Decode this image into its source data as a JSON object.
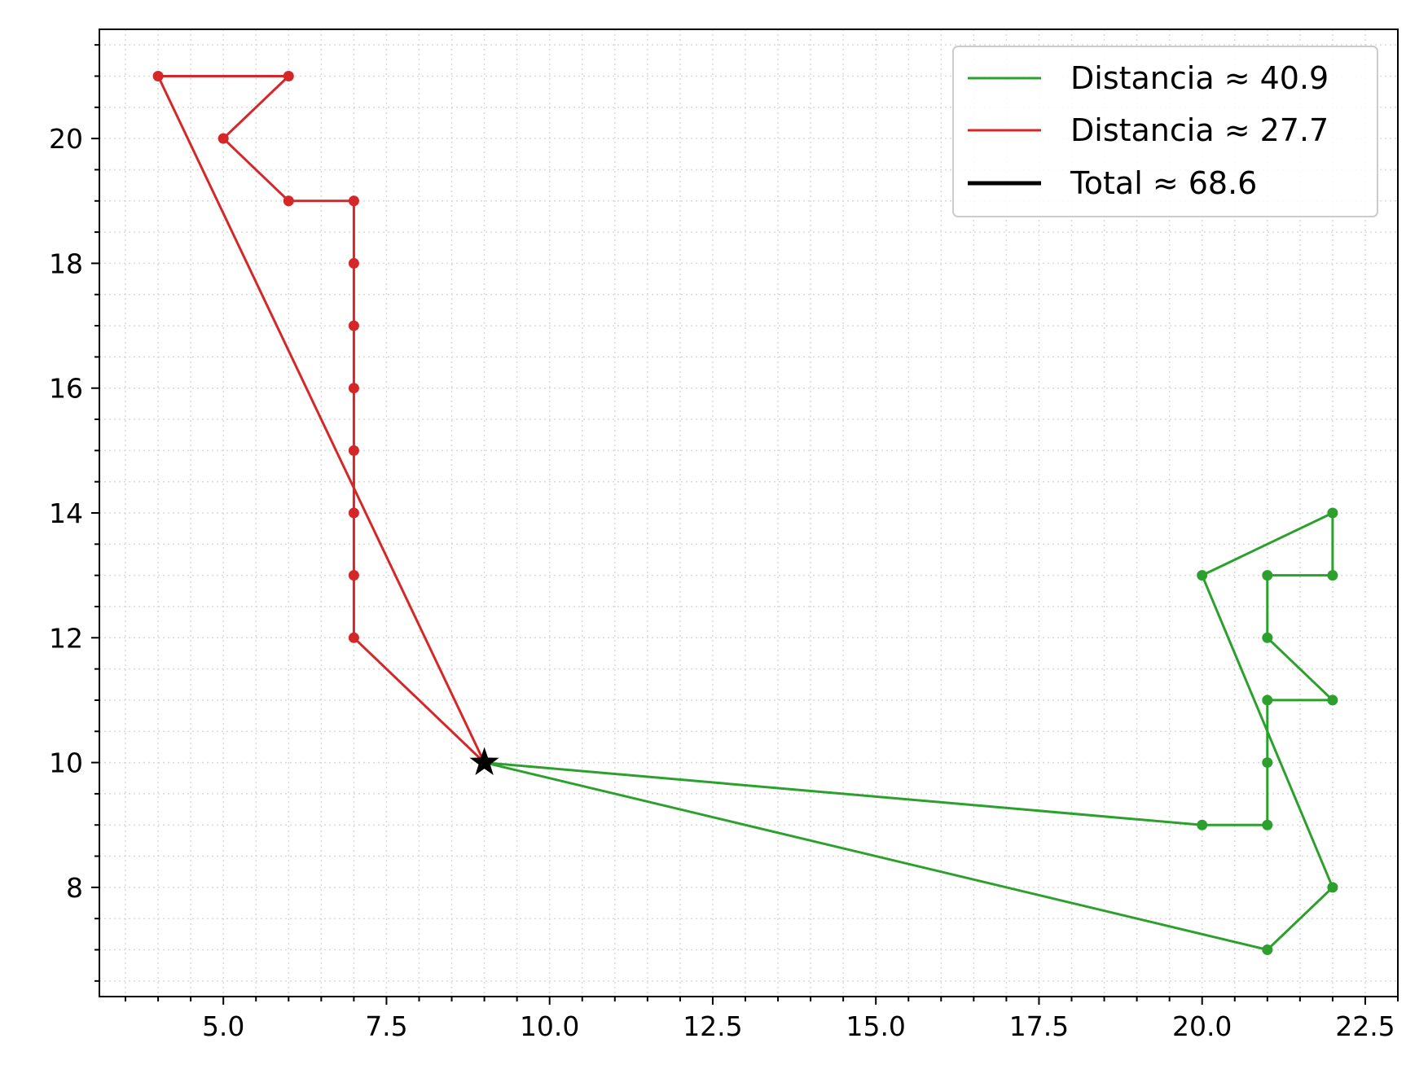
{
  "chart_data": {
    "type": "line",
    "title": "",
    "xlabel": "",
    "ylabel": "",
    "xlim": [
      3.1,
      23.0
    ],
    "ylim": [
      6.25,
      21.75
    ],
    "xticks": [
      5.0,
      7.5,
      10.0,
      12.5,
      15.0,
      17.5,
      20.0,
      22.5
    ],
    "xtick_labels": [
      "5.0",
      "7.5",
      "10.0",
      "12.5",
      "15.0",
      "17.5",
      "20.0",
      "22.5"
    ],
    "yticks": [
      8,
      10,
      12,
      14,
      16,
      18,
      20
    ],
    "ytick_labels": [
      "8",
      "10",
      "12",
      "14",
      "16",
      "18",
      "20"
    ],
    "grid": "minor dotted",
    "legend_position": "top-right",
    "depot": {
      "x": 9,
      "y": 10,
      "marker": "star",
      "color": "#000000"
    },
    "series": [
      {
        "name": "Distancia ≈ 40.9",
        "color": "#2ca02c",
        "x": [
          9,
          20,
          21,
          21,
          21,
          22,
          21,
          21,
          22,
          22,
          20,
          22,
          21,
          9
        ],
        "y": [
          10,
          9,
          9,
          10,
          11,
          11,
          12,
          13,
          13,
          14,
          13,
          8,
          7,
          10
        ]
      },
      {
        "name": "Distancia ≈ 27.7",
        "color": "#d62728",
        "x": [
          9,
          7,
          7,
          7,
          7,
          7,
          7,
          7,
          7,
          6,
          5,
          6,
          4,
          9
        ],
        "y": [
          10,
          12,
          13,
          14,
          15,
          16,
          17,
          18,
          19,
          19,
          20,
          21,
          21,
          10
        ]
      }
    ],
    "legend": [
      {
        "label": "Distancia ≈ 40.9",
        "color": "#2ca02c"
      },
      {
        "label": "Distancia ≈ 27.7",
        "color": "#d62728"
      },
      {
        "label": "Total ≈ 68.6",
        "color": "#000000"
      }
    ]
  }
}
